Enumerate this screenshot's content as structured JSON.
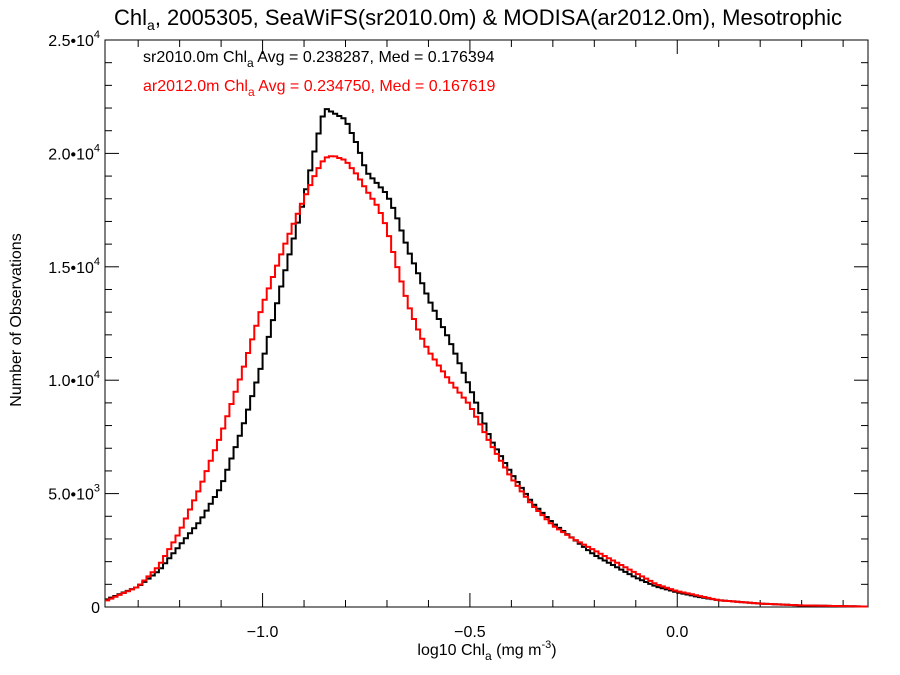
{
  "chart_data": {
    "type": "line",
    "title": {
      "prefix": "Chl",
      "sub": "a",
      "rest": ", 2005305, SeaWiFS(sr2010.0m) & MODISA(ar2012.0m), Mesotrophic"
    },
    "xlabel": {
      "prefix": "log10 Chl",
      "sub": "a",
      "rest": " (mg m",
      "sup": "-3",
      "end": ")"
    },
    "ylabel": "Number of Observations",
    "xlim": [
      -1.38,
      0.46
    ],
    "ylim": [
      0,
      25000
    ],
    "x_ticks": [
      {
        "value": -1.0,
        "label": "−1.0"
      },
      {
        "value": -0.5,
        "label": "−0.5"
      },
      {
        "value": 0.0,
        "label": "0.0"
      }
    ],
    "y_ticks": [
      {
        "value": 0,
        "mant": "0",
        "exp": ""
      },
      {
        "value": 5000,
        "mant": "5.0•10",
        "exp": "3"
      },
      {
        "value": 10000,
        "mant": "1.0•10",
        "exp": "4"
      },
      {
        "value": 15000,
        "mant": "1.5•10",
        "exp": "4"
      },
      {
        "value": 20000,
        "mant": "2.0•10",
        "exp": "4"
      },
      {
        "value": 25000,
        "mant": "2.5•10",
        "exp": "4"
      }
    ],
    "grid": false,
    "legend_position": "top-left",
    "series": [
      {
        "name": "sr2010.0m",
        "color": "#000000",
        "legend": {
          "prefix": "sr2010.0m Chl",
          "sub": "a",
          "rest": " Avg = 0.238287, Med = 0.176394"
        },
        "x": [
          -1.38,
          -1.3,
          -1.25,
          -1.2,
          -1.15,
          -1.1,
          -1.05,
          -1.0,
          -0.95,
          -0.9,
          -0.87,
          -0.85,
          -0.83,
          -0.8,
          -0.77,
          -0.75,
          -0.72,
          -0.7,
          -0.68,
          -0.65,
          -0.62,
          -0.6,
          -0.55,
          -0.5,
          -0.45,
          -0.4,
          -0.35,
          -0.3,
          -0.25,
          -0.2,
          -0.15,
          -0.1,
          -0.05,
          0.0,
          0.05,
          0.1,
          0.2,
          0.3,
          0.46
        ],
        "y": [
          300,
          900,
          1600,
          2700,
          3800,
          5300,
          7800,
          10800,
          14500,
          18000,
          20500,
          22000,
          21800,
          21500,
          20300,
          19200,
          18600,
          18200,
          17400,
          15800,
          14500,
          13600,
          11800,
          9700,
          7400,
          5900,
          4600,
          3700,
          3000,
          2300,
          1800,
          1300,
          900,
          650,
          450,
          300,
          150,
          70,
          20
        ]
      },
      {
        "name": "ar2012.0m",
        "color": "#ff0000",
        "legend": {
          "prefix": "ar2012.0m Chl",
          "sub": "a",
          "rest": " Avg = 0.234750, Med = 0.167619"
        },
        "x": [
          -1.38,
          -1.3,
          -1.25,
          -1.2,
          -1.15,
          -1.1,
          -1.05,
          -1.0,
          -0.95,
          -0.9,
          -0.87,
          -0.85,
          -0.83,
          -0.8,
          -0.77,
          -0.75,
          -0.72,
          -0.7,
          -0.68,
          -0.65,
          -0.62,
          -0.6,
          -0.55,
          -0.5,
          -0.45,
          -0.4,
          -0.35,
          -0.3,
          -0.25,
          -0.2,
          -0.15,
          -0.1,
          -0.05,
          0.0,
          0.05,
          0.1,
          0.2,
          0.3,
          0.46
        ],
        "y": [
          250,
          900,
          1800,
          3300,
          5300,
          7600,
          10300,
          13300,
          15800,
          18000,
          19200,
          19800,
          19900,
          19700,
          19000,
          18400,
          17600,
          16700,
          15300,
          13400,
          12000,
          11300,
          10000,
          8900,
          7200,
          5700,
          4500,
          3600,
          3000,
          2500,
          2000,
          1500,
          1000,
          700,
          500,
          300,
          150,
          70,
          20
        ]
      }
    ]
  }
}
